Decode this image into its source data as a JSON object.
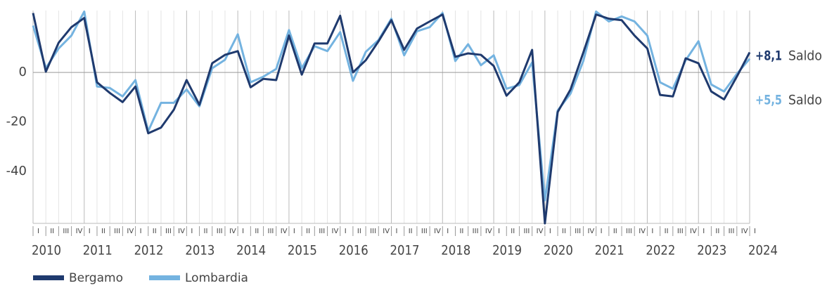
{
  "chart_data": {
    "type": "line",
    "categories": [
      "I",
      "II",
      "III",
      "IV",
      "I",
      "II",
      "III",
      "IV",
      "I",
      "II",
      "III",
      "IV",
      "I",
      "II",
      "III",
      "IV",
      "I",
      "II",
      "III",
      "IV",
      "I",
      "II",
      "III",
      "IV",
      "I",
      "II",
      "III",
      "IV",
      "I",
      "II",
      "III",
      "IV",
      "I",
      "II",
      "III",
      "IV",
      "I",
      "II",
      "III",
      "IV",
      "I",
      "II",
      "III",
      "IV",
      "I",
      "II",
      "III",
      "IV",
      "I",
      "II",
      "III",
      "IV",
      "I",
      "II",
      "III",
      "IV",
      "I"
    ],
    "years": [
      "2010",
      "2011",
      "2012",
      "2013",
      "2014",
      "2015",
      "2016",
      "2017",
      "2018",
      "2019",
      "2020",
      "2021",
      "2022",
      "2023",
      "2024"
    ],
    "ylim": [
      -61,
      25
    ],
    "yticks": [
      -40,
      -20,
      0
    ],
    "series": [
      {
        "name": "Bergamo",
        "color": "#1f3a6e",
        "end_label": "+8,1",
        "end_text": "Saldo",
        "values": [
          24,
          0.3,
          12,
          18.3,
          22,
          -4,
          -8.3,
          -12,
          -5.7,
          -24.6,
          -22.3,
          -15.1,
          -3.1,
          -13.1,
          3.7,
          7.1,
          8.6,
          -6,
          -2.6,
          -3.1,
          14.9,
          -0.9,
          11.7,
          11.7,
          22.9,
          0,
          4.9,
          12.6,
          21.1,
          9.1,
          17.7,
          20.6,
          23.4,
          6.3,
          7.7,
          7.1,
          2.6,
          -9.4,
          -4,
          9.1,
          -61,
          -16,
          -6.9,
          8,
          23.4,
          21.7,
          21.1,
          14.9,
          9.7,
          -9.1,
          -9.7,
          5.7,
          3.7,
          -7.7,
          -10.9,
          -1.7,
          8.1
        ]
      },
      {
        "name": "Lombardia",
        "color": "#74b3e0",
        "end_label": "+5,5",
        "end_text": "Saldo",
        "values": [
          18.9,
          1.7,
          9.7,
          14.9,
          24.6,
          -5.7,
          -6.3,
          -9.7,
          -3.1,
          -23.7,
          -12.3,
          -12.3,
          -6.9,
          -13.7,
          1.7,
          5.1,
          15.4,
          -4,
          -1.7,
          1.4,
          17.1,
          1.7,
          10.6,
          8.6,
          16.3,
          -3.4,
          8.3,
          13.1,
          21.7,
          6.9,
          16.6,
          18.3,
          24,
          4.6,
          11.4,
          2.9,
          6.9,
          -6.6,
          -5.1,
          4,
          -51.7,
          -15.4,
          -8.6,
          4.6,
          24.6,
          20.6,
          22.6,
          20.6,
          14.9,
          -4,
          -6.6,
          4.9,
          12.6,
          -4.9,
          -7.7,
          -0.6,
          5.5
        ]
      }
    ]
  }
}
